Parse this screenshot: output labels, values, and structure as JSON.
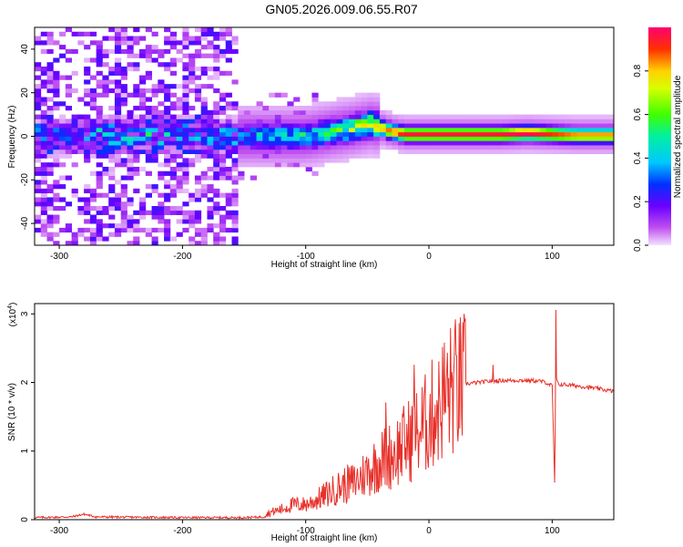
{
  "title": "GN05.2026.009.06.55.R07",
  "chart_data": [
    {
      "type": "heatmap",
      "name": "spectrogram",
      "xlabel": "Height of straight line (km)",
      "ylabel": "Frequency (Hz)",
      "xlim": [
        -320,
        150
      ],
      "ylim": [
        -50,
        50
      ],
      "xticks": [
        -300,
        -200,
        -100,
        0,
        100
      ],
      "yticks": [
        -40,
        -20,
        0,
        20,
        40
      ],
      "colorbar": {
        "label": "Normalized spectral amplitude",
        "range": [
          0,
          1
        ],
        "ticks": [
          0.0,
          0.2,
          0.4,
          0.6,
          0.8
        ],
        "tick_labels": [
          "0.0",
          "0.2",
          "0.4",
          "0.6",
          "0.8"
        ]
      },
      "ridge": {
        "description": "bright narrow band near 0 Hz",
        "x": [
          -155,
          -120,
          -100,
          -80,
          -60,
          -45,
          -35,
          -20,
          0,
          20,
          60,
          80,
          100,
          120,
          150
        ],
        "center_hz": [
          0,
          0,
          0,
          2,
          4,
          6,
          3,
          1,
          1,
          1,
          1,
          1.5,
          1,
          0.5,
          0.5
        ],
        "peak_amplitude": [
          0.35,
          0.5,
          0.5,
          0.55,
          0.7,
          0.8,
          0.85,
          0.95,
          0.95,
          0.95,
          0.95,
          1.0,
          0.9,
          0.85,
          0.85
        ]
      },
      "noise_region": {
        "x_range": [
          -320,
          -155
        ],
        "amplitude": [
          0.02,
          0.3
        ]
      }
    },
    {
      "type": "line",
      "name": "snr",
      "xlabel": "Height of straight line (km)",
      "ylabel": "SNR (10 * v/v)",
      "y_multiplier_label": "(x10",
      "y_multiplier_exp": "4",
      "y_multiplier_close": ")",
      "xlim": [
        -320,
        150
      ],
      "ylim": [
        0,
        3.15
      ],
      "xticks": [
        -300,
        -200,
        -100,
        0,
        100
      ],
      "yticks": [
        0,
        1,
        2,
        3
      ],
      "color": "#e8302a",
      "series": [
        {
          "name": "SNR",
          "x": [
            -320,
            -290,
            -280,
            -270,
            -200,
            -150,
            -135,
            -130,
            -120,
            -110,
            -100,
            -90,
            -80,
            -70,
            -60,
            -50,
            -40,
            -30,
            -20,
            -10,
            0,
            10,
            20,
            30,
            40,
            50,
            60,
            70,
            80,
            90,
            95,
            100,
            102,
            103,
            104,
            106,
            110,
            120,
            130,
            140,
            150
          ],
          "y": [
            0.03,
            0.04,
            0.08,
            0.04,
            0.03,
            0.03,
            0.04,
            0.1,
            0.15,
            0.22,
            0.22,
            0.3,
            0.4,
            0.5,
            0.55,
            0.7,
            0.85,
            0.95,
            1.1,
            1.25,
            1.45,
            1.75,
            1.92,
            1.98,
            2.0,
            2.02,
            2.03,
            2.03,
            2.03,
            2.02,
            2.0,
            1.95,
            0.55,
            2.1,
            2.0,
            1.97,
            1.97,
            1.95,
            1.93,
            1.9,
            1.87
          ]
        }
      ],
      "spikes": [
        {
          "x": -35,
          "y": 1.7
        },
        {
          "x": -12,
          "y": 2.25
        },
        {
          "x": 8,
          "y": 2.3
        },
        {
          "x": 52,
          "y": 2.25
        },
        {
          "x": 103,
          "y": 3.05
        },
        {
          "x": 102,
          "y": 0.55
        }
      ]
    }
  ]
}
